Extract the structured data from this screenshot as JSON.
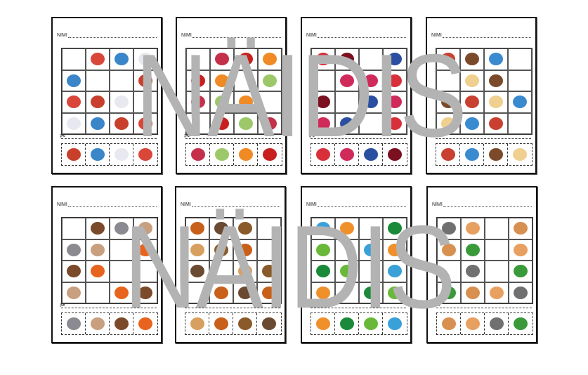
{
  "name_label": "NIMI",
  "watermark": "NÄIDIS",
  "scissors_icon": "✂",
  "icon_colors": {
    "helicopter": "#d9463a",
    "balloon": "#3b86c9",
    "plane": "#e8e8f0",
    "biplane": "#c8402c",
    "radish": "#c4304a",
    "pepper": "#c8201e",
    "carrot": "#f08a24",
    "cabbage": "#9cc86a",
    "strawberry": "#d8303a",
    "cherry": "#7a1020",
    "raspberry": "#d02a5a",
    "blueberry": "#2a4fa0",
    "train": "#c84030",
    "bear": "#7a4a2a",
    "truck": "#3a8ad0",
    "horse": "#f0d090",
    "wolf": "#8a8a90",
    "rabbit": "#c8a080",
    "fox": "#e8641e",
    "squirrel": "#c8601a",
    "hedgehog": "#6a4a30",
    "beaver": "#8a5a2a",
    "deer": "#d8a060",
    "earth": "#3aa0d8",
    "flower": "#f0902a",
    "bin": "#1a8a3a",
    "sprout": "#6ab83a",
    "cat": "#707070",
    "hamster": "#e8a060",
    "dog": "#d89050",
    "turtle": "#3a9a3a"
  },
  "cards": [
    {
      "grid": [
        [
          "",
          "helicopter",
          "balloon",
          "plane"
        ],
        [
          "balloon",
          "",
          "",
          "biplane"
        ],
        [
          "helicopter",
          "biplane",
          "plane",
          ""
        ],
        [
          "plane",
          "balloon",
          "biplane",
          "helicopter"
        ]
      ],
      "cutouts": [
        "biplane",
        "balloon",
        "plane",
        "helicopter"
      ]
    },
    {
      "grid": [
        [
          "",
          "radish",
          "pepper",
          "carrot"
        ],
        [
          "pepper",
          "carrot",
          "",
          "cabbage"
        ],
        [
          "radish",
          "cabbage",
          "carrot",
          ""
        ],
        [
          "",
          "pepper",
          "cabbage",
          "radish"
        ]
      ],
      "cutouts": [
        "radish",
        "cabbage",
        "carrot",
        "pepper"
      ]
    },
    {
      "grid": [
        [
          "strawberry",
          "cherry",
          "",
          "blueberry"
        ],
        [
          "",
          "raspberry",
          "raspberry",
          "strawberry"
        ],
        [
          "cherry",
          "",
          "blueberry",
          "raspberry"
        ],
        [
          "raspberry",
          "blueberry",
          "",
          "strawberry"
        ]
      ],
      "cutouts": [
        "strawberry",
        "raspberry",
        "blueberry",
        "cherry"
      ]
    },
    {
      "grid": [
        [
          "train",
          "bear",
          "truck",
          ""
        ],
        [
          "",
          "horse",
          "bear",
          ""
        ],
        [
          "bear",
          "train",
          "horse",
          "truck"
        ],
        [
          "horse",
          "truck",
          "train",
          ""
        ]
      ],
      "cutouts": [
        "train",
        "truck",
        "bear",
        "horse"
      ]
    },
    {
      "grid": [
        [
          "",
          "bear",
          "wolf",
          "rabbit"
        ],
        [
          "wolf",
          "rabbit",
          "",
          "fox"
        ],
        [
          "bear",
          "fox",
          "",
          ""
        ],
        [
          "rabbit",
          "",
          "fox",
          "bear"
        ]
      ],
      "cutouts": [
        "wolf",
        "rabbit",
        "bear",
        "fox"
      ]
    },
    {
      "grid": [
        [
          "squirrel",
          "hedgehog",
          "beaver",
          ""
        ],
        [
          "deer",
          "beaver",
          "squirrel",
          ""
        ],
        [
          "hedgehog",
          "",
          "deer",
          "beaver"
        ],
        [
          "",
          "squirrel",
          "hedgehog",
          "squirrel"
        ]
      ],
      "cutouts": [
        "deer",
        "squirrel",
        "beaver",
        "hedgehog"
      ]
    },
    {
      "grid": [
        [
          "earth",
          "flower",
          "",
          "bin"
        ],
        [
          "sprout",
          "",
          "earth",
          "flower"
        ],
        [
          "bin",
          "sprout",
          "",
          "earth"
        ],
        [
          "flower",
          "",
          "bin",
          "sprout"
        ]
      ],
      "cutouts": [
        "flower",
        "bin",
        "sprout",
        "earth"
      ]
    },
    {
      "grid": [
        [
          "cat",
          "hamster",
          "",
          "dog"
        ],
        [
          "dog",
          "turtle",
          "",
          "hamster"
        ],
        [
          "",
          "cat",
          "",
          "turtle"
        ],
        [
          "turtle",
          "dog",
          "hamster",
          "cat"
        ]
      ],
      "cutouts": [
        "dog",
        "hamster",
        "cat",
        "turtle"
      ]
    }
  ]
}
